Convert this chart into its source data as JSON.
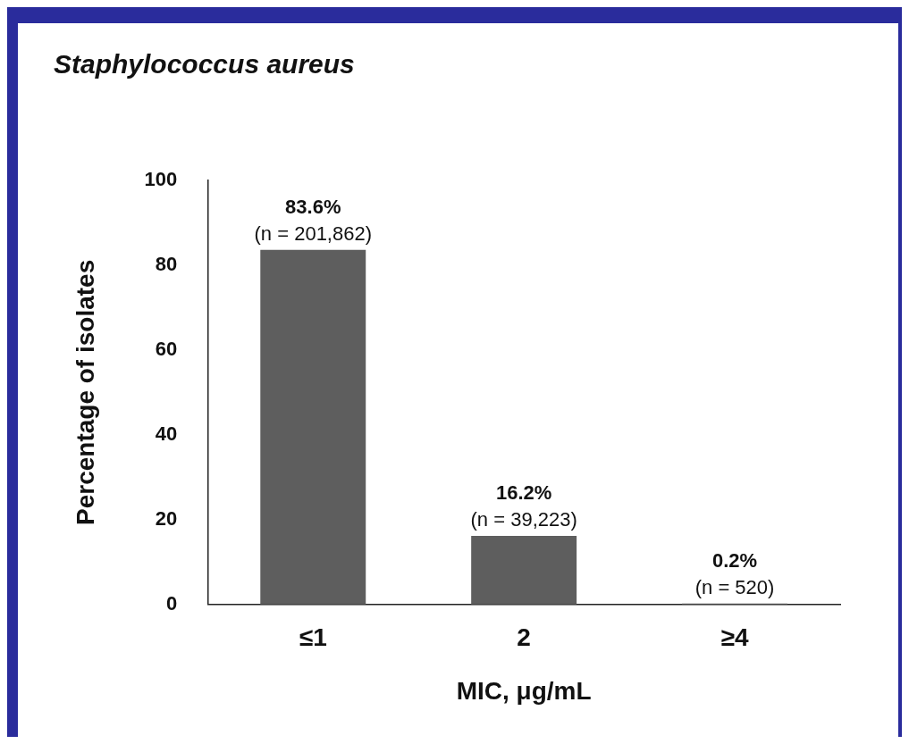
{
  "chart_data": {
    "type": "bar",
    "title": "Staphylococcus aureus",
    "xlabel": "MIC, μg/mL",
    "ylabel": "Percentage of isolates",
    "categories": [
      "≤1",
      "2",
      "≥4"
    ],
    "values": [
      83.6,
      16.2,
      0.2
    ],
    "color": "#5e5e5e",
    "value_labels": [
      "83.6%",
      "16.2%",
      "0.2%"
    ],
    "annotations": [
      {
        "text": "(n = 201,862)",
        "x": "≤1",
        "y": 83.6
      },
      {
        "text": "(n = 39,223)",
        "x": "2",
        "y": 16.2
      },
      {
        "text": "(n = 520)",
        "x": "≥4",
        "y": 0.2
      }
    ],
    "ylim": [
      0,
      100
    ],
    "yticks": [
      0,
      20,
      40,
      60,
      80,
      100
    ],
    "grid": false,
    "legend": false
  }
}
